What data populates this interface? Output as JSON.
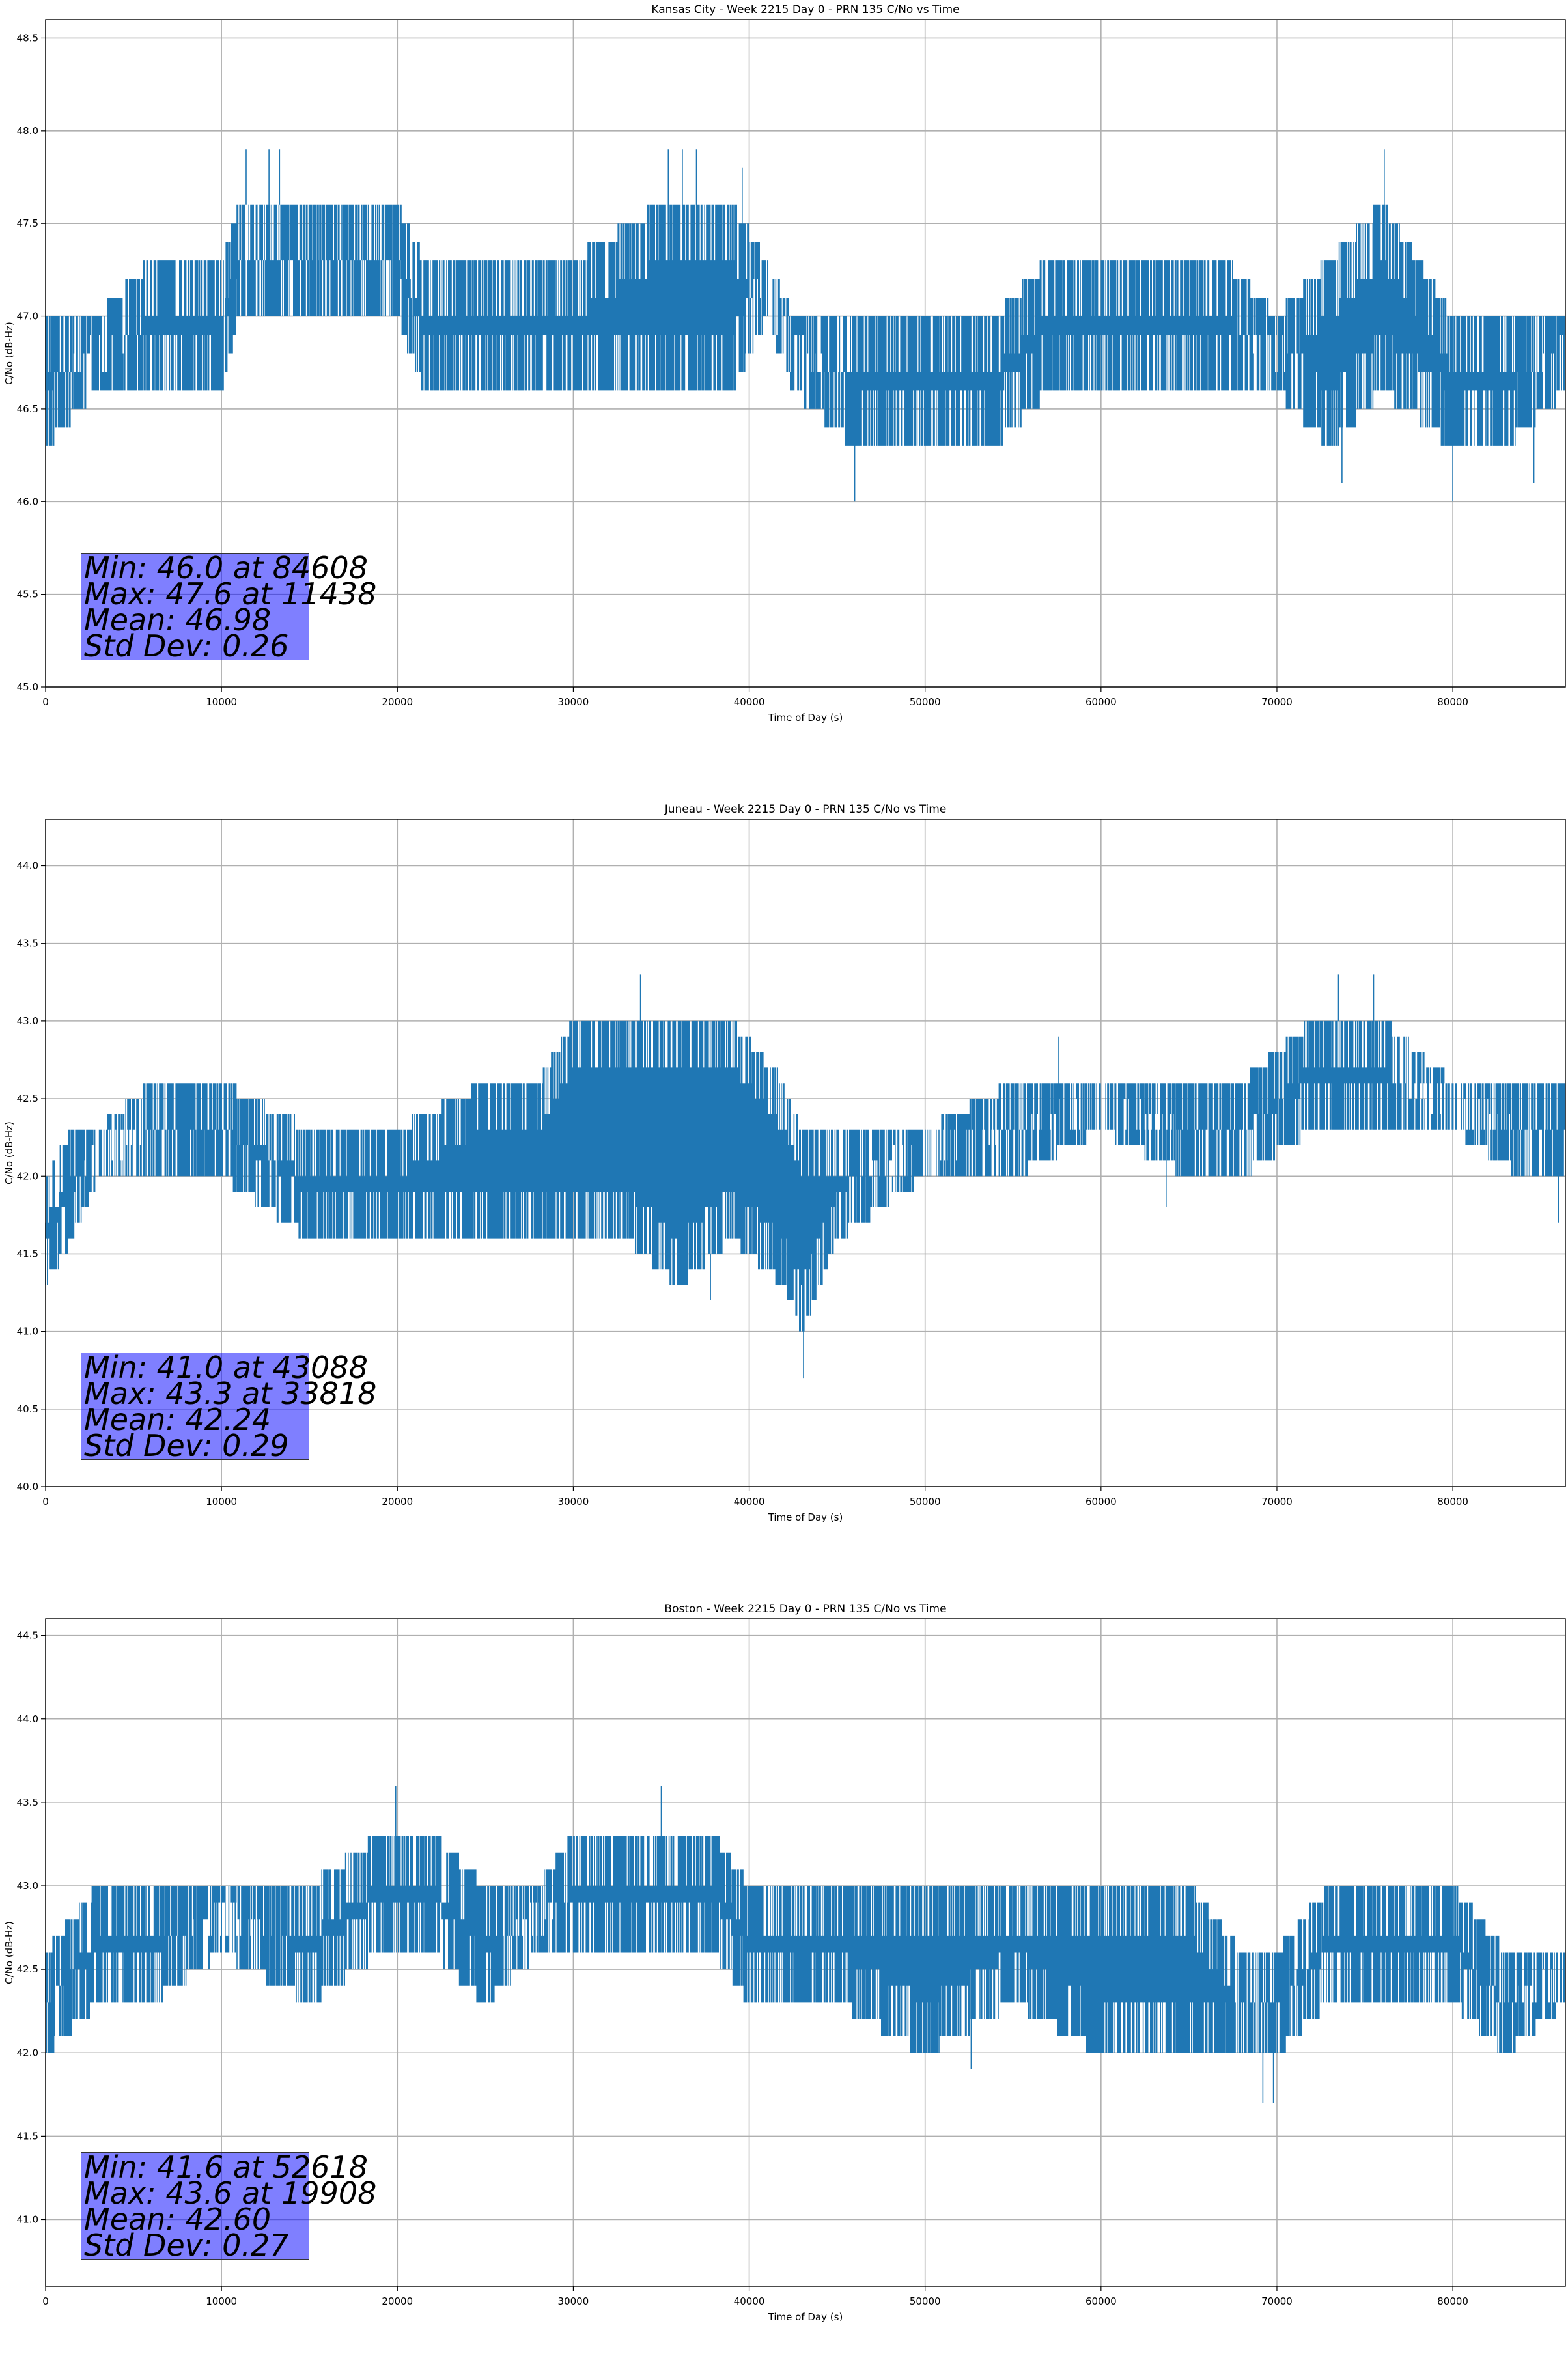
{
  "chart_data": [
    {
      "type": "line",
      "title": "Kansas City - Week 2215 Day 0 - PRN 135 C/No vs Time",
      "xlabel": "Time of Day (s)",
      "ylabel": "C/No (dB-Hz)",
      "xlim": [
        0,
        86400
      ],
      "ylim": [
        45.0,
        48.6
      ],
      "xticks": [
        "0",
        "10000",
        "20000",
        "30000",
        "40000",
        "50000",
        "60000",
        "70000",
        "80000"
      ],
      "yticks": [
        "45.0",
        "45.5",
        "46.0",
        "46.5",
        "47.0",
        "47.5",
        "48.0",
        "48.5"
      ],
      "grid": true,
      "line_color": "#1f77b4",
      "envelope": {
        "x": [
          0,
          3000,
          6000,
          10000,
          11000,
          15000,
          20000,
          21500,
          25000,
          30000,
          35000,
          39000,
          41000,
          42500,
          46000,
          50000,
          54000,
          57000,
          60000,
          64000,
          67000,
          70000,
          73000,
          76000,
          80000,
          83000,
          86400
        ],
        "upper": [
          47.0,
          47.0,
          47.3,
          47.3,
          47.6,
          47.6,
          47.6,
          47.3,
          47.3,
          47.3,
          47.6,
          47.6,
          47.3,
          47.0,
          47.0,
          47.0,
          47.0,
          47.3,
          47.3,
          47.3,
          47.3,
          47.0,
          47.3,
          47.6,
          47.0,
          47.0,
          47.0
        ],
        "lower": [
          46.3,
          46.6,
          46.6,
          46.6,
          47.0,
          47.0,
          47.0,
          46.6,
          46.6,
          46.6,
          46.6,
          46.6,
          47.0,
          46.6,
          46.3,
          46.3,
          46.3,
          46.6,
          46.6,
          46.6,
          46.6,
          46.6,
          46.3,
          46.6,
          46.3,
          46.3,
          46.6
        ],
        "upper_spikes": [
          11400,
          12700,
          13300,
          35400,
          36200,
          37000,
          39600,
          76100
        ],
        "lower_spikes": [
          84608,
          80000,
          73700,
          46000
        ]
      },
      "stats": [
        "Min: 46.0 at 84608",
        "Max: 47.6 at 11438",
        "Mean: 46.98",
        "Std Dev: 0.26"
      ]
    },
    {
      "type": "line",
      "title": "Juneau - Week 2215 Day 0 - PRN 135 C/No vs Time",
      "xlabel": "Time of Day (s)",
      "ylabel": "C/No (dB-Hz)",
      "xlim": [
        0,
        86400
      ],
      "ylim": [
        40.0,
        44.3
      ],
      "xticks": [
        "0",
        "10000",
        "20000",
        "30000",
        "40000",
        "50000",
        "60000",
        "70000",
        "80000"
      ],
      "yticks": [
        "40.0",
        "40.5",
        "41.0",
        "41.5",
        "42.0",
        "42.5",
        "43.0",
        "43.5",
        "44.0"
      ],
      "grid": true,
      "line_color": "#1f77b4",
      "envelope": {
        "x": [
          0,
          1500,
          3000,
          6000,
          10000,
          15000,
          20000,
          25000,
          28000,
          30000,
          33000,
          36000,
          39000,
          42000,
          43000,
          45000,
          50000,
          55000,
          60000,
          65000,
          68000,
          72000,
          76000,
          80000,
          84000,
          86400
        ],
        "upper": [
          42.0,
          42.3,
          42.3,
          42.6,
          42.6,
          42.3,
          42.3,
          42.6,
          42.6,
          43.0,
          43.0,
          43.0,
          43.0,
          42.6,
          42.3,
          42.3,
          42.3,
          42.6,
          42.6,
          42.6,
          42.6,
          43.0,
          43.0,
          42.6,
          42.6,
          42.6
        ],
        "lower": [
          41.3,
          41.6,
          42.0,
          42.0,
          42.0,
          41.6,
          41.6,
          41.6,
          41.6,
          41.6,
          41.6,
          41.3,
          41.6,
          41.3,
          41.0,
          41.6,
          42.0,
          42.0,
          42.3,
          42.0,
          42.0,
          42.3,
          42.3,
          42.3,
          42.0,
          42.0
        ],
        "upper_spikes": [
          33818,
          57600,
          73500,
          75500
        ],
        "lower_spikes": [
          43088,
          63700,
          37800,
          86000
        ]
      },
      "stats": [
        "Min: 41.0 at 43088",
        "Max: 43.3 at 33818",
        "Mean: 42.24",
        "Std Dev: 0.29"
      ]
    },
    {
      "type": "line",
      "title": "Boston - Week 2215 Day 0 - PRN 135 C/No vs Time",
      "xlabel": "Time of Day (s)",
      "ylabel": "C/No (dB-Hz)",
      "xlim": [
        0,
        86400
      ],
      "ylim": [
        40.6,
        44.6
      ],
      "xticks": [
        "0",
        "10000",
        "20000",
        "30000",
        "40000",
        "50000",
        "60000",
        "70000",
        "80000"
      ],
      "yticks": [
        "41.0",
        "41.5",
        "42.0",
        "42.5",
        "43.0",
        "43.5",
        "44.0",
        "44.5"
      ],
      "grid": true,
      "line_color": "#1f77b4",
      "envelope": {
        "x": [
          0,
          3000,
          6000,
          10000,
          15000,
          19000,
          22000,
          25000,
          28000,
          30000,
          35000,
          38000,
          40000,
          42000,
          45000,
          50000,
          55000,
          60000,
          65000,
          68000,
          70000,
          73000,
          76000,
          80000,
          83000,
          86400
        ],
        "upper": [
          42.6,
          43.0,
          43.0,
          43.0,
          43.0,
          43.3,
          43.3,
          43.0,
          43.0,
          43.3,
          43.3,
          43.3,
          43.0,
          43.0,
          43.0,
          43.0,
          43.0,
          43.0,
          43.0,
          42.6,
          42.6,
          43.0,
          43.0,
          43.0,
          42.6,
          42.6
        ],
        "lower": [
          42.0,
          42.3,
          42.3,
          42.6,
          42.3,
          42.6,
          42.6,
          42.3,
          42.6,
          42.6,
          42.6,
          42.6,
          42.3,
          42.3,
          42.3,
          42.0,
          42.3,
          42.0,
          42.0,
          42.0,
          42.0,
          42.3,
          42.3,
          42.3,
          42.0,
          42.3
        ],
        "upper_spikes": [
          19908,
          35000
        ],
        "lower_spikes": [
          52618,
          69200,
          69800
        ]
      },
      "stats": [
        "Min: 41.6 at 52618",
        "Max: 43.6 at 19908",
        "Mean: 42.60",
        "Std Dev: 0.27"
      ]
    }
  ]
}
